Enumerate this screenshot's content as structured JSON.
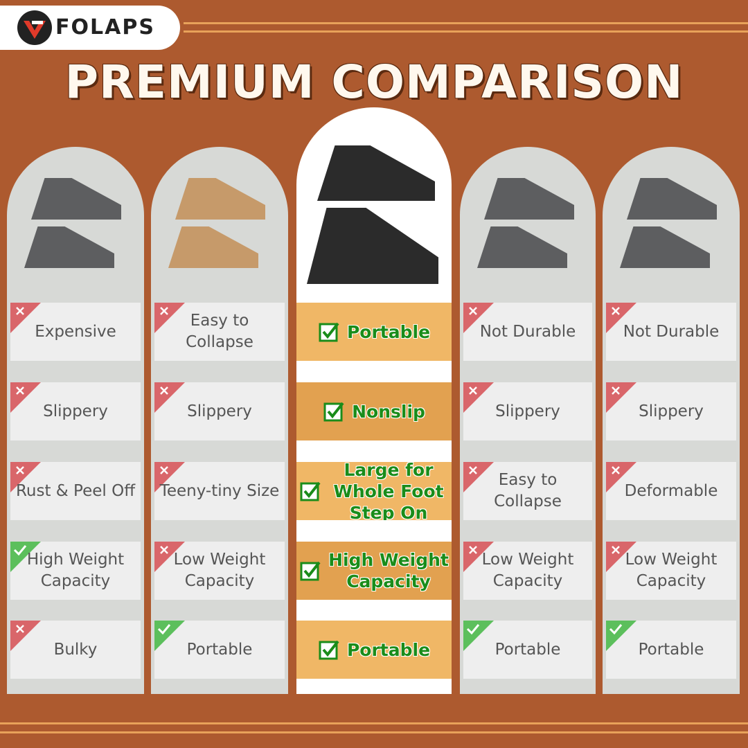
{
  "header": {
    "brand": "FOLAPS",
    "title": "PREMIUM COMPARISON"
  },
  "columns": [
    {
      "items": [
        {
          "text": "Expensive",
          "mark": "cross"
        },
        {
          "text": "Slippery",
          "mark": "cross"
        },
        {
          "text": "Rust & Peel Off",
          "mark": "cross"
        },
        {
          "text": "High Weight Capacity",
          "mark": "check"
        },
        {
          "text": "Bulky",
          "mark": "cross"
        }
      ]
    },
    {
      "items": [
        {
          "text": "Easy to Collapse",
          "mark": "cross"
        },
        {
          "text": "Slippery",
          "mark": "cross"
        },
        {
          "text": "Teeny-tiny Size",
          "mark": "cross"
        },
        {
          "text": "Low Weight Capacity",
          "mark": "cross"
        },
        {
          "text": "Portable",
          "mark": "check"
        }
      ]
    },
    {
      "featured": true,
      "items": [
        {
          "text": "Portable",
          "mark": "check"
        },
        {
          "text": "Nonslip",
          "mark": "check"
        },
        {
          "text": "Large for Whole Foot Step On",
          "mark": "check"
        },
        {
          "text": "High Weight Capacity",
          "mark": "check"
        },
        {
          "text": "Portable",
          "mark": "check"
        }
      ]
    },
    {
      "items": [
        {
          "text": "Not Durable",
          "mark": "cross"
        },
        {
          "text": "Slippery",
          "mark": "cross"
        },
        {
          "text": "Easy to Collapse",
          "mark": "cross"
        },
        {
          "text": "Low Weight Capacity",
          "mark": "cross"
        },
        {
          "text": "Portable",
          "mark": "check"
        }
      ]
    },
    {
      "items": [
        {
          "text": "Not Durable",
          "mark": "cross"
        },
        {
          "text": "Slippery",
          "mark": "cross"
        },
        {
          "text": "Deformable",
          "mark": "cross"
        },
        {
          "text": "Low Weight Capacity",
          "mark": "cross"
        },
        {
          "text": "Portable",
          "mark": "check"
        }
      ]
    }
  ]
}
